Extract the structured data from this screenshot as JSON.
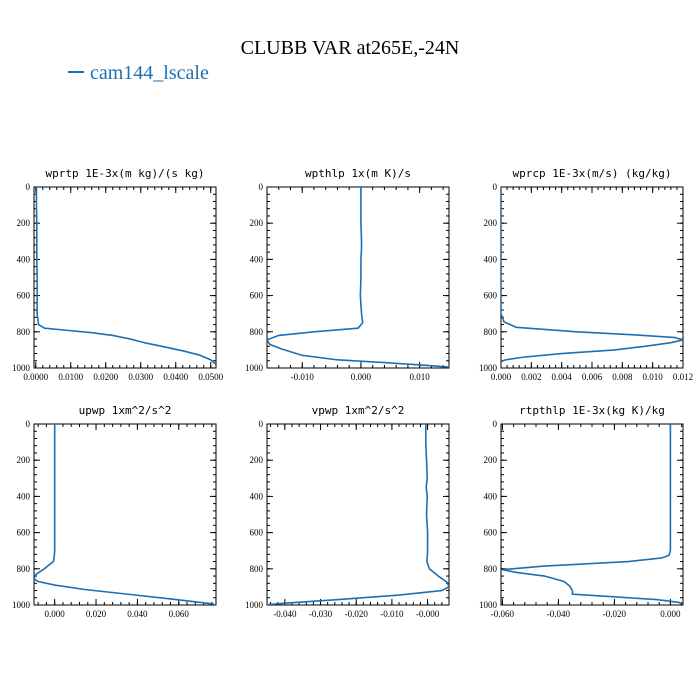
{
  "figure": {
    "title": "CLUBB VAR at265E,-24N",
    "legend_label": "cam144_lscale",
    "line_color": "#1f6fb0"
  },
  "chart_data": [
    {
      "type": "line",
      "title": "wprtp  1E-3x(m kg)/(s kg)",
      "xlim": [
        -0.0005,
        0.0515
      ],
      "ylim": [
        1000,
        0
      ],
      "xticks": [
        0.0,
        0.01,
        0.02,
        0.03,
        0.04,
        0.05
      ],
      "xtick_labels": [
        "0.0000",
        "0.0100",
        "0.0200",
        "0.0300",
        "0.0400",
        "0.0500"
      ],
      "yticks": [
        0,
        200,
        400,
        600,
        800,
        1000
      ],
      "ytick_labels": [
        "0",
        "200",
        "400",
        "600",
        "800",
        "1000"
      ],
      "series": [
        {
          "x": [
            0.0002,
            0.0002,
            0.0003,
            0.0003,
            0.0003,
            0.0004,
            0.0004,
            0.0004,
            0.0008,
            0.0025,
            0.008,
            0.016,
            0.022,
            0.027,
            0.031,
            0.036,
            0.042,
            0.047,
            0.05,
            0.0515
          ],
          "y": [
            0,
            100,
            200,
            300,
            400,
            500,
            600,
            700,
            760,
            780,
            790,
            805,
            820,
            840,
            860,
            880,
            905,
            930,
            955,
            980
          ]
        }
      ]
    },
    {
      "type": "line",
      "title": "wpthlp  1x(m K)/s",
      "xlim": [
        -0.016,
        0.015
      ],
      "ylim": [
        1000,
        0
      ],
      "xticks": [
        -0.01,
        0.0,
        0.01
      ],
      "xtick_labels": [
        "-0.010",
        "0.000",
        "0.010"
      ],
      "yticks": [
        0,
        200,
        400,
        600,
        800,
        1000
      ],
      "ytick_labels": [
        "0",
        "200",
        "400",
        "600",
        "800",
        "1000"
      ],
      "series": [
        {
          "x": [
            0.0,
            0.0,
            0.0,
            0.0001,
            0.0001,
            0.0,
            0.0,
            -0.0001,
            0.0001,
            0.0003,
            -0.0005,
            -0.008,
            -0.014,
            -0.016,
            -0.0155,
            -0.0135,
            -0.01,
            -0.004,
            0.004,
            0.011,
            0.015
          ],
          "y": [
            0,
            100,
            200,
            300,
            340,
            400,
            500,
            600,
            700,
            750,
            780,
            800,
            820,
            845,
            870,
            895,
            930,
            955,
            970,
            985,
            995
          ]
        }
      ]
    },
    {
      "type": "line",
      "title": "wprcp  1E-3x(m/s) (kg/kg)",
      "xlim": [
        0.0,
        0.012
      ],
      "ylim": [
        1000,
        0
      ],
      "xticks": [
        0.0,
        0.002,
        0.004,
        0.006,
        0.008,
        0.01,
        0.012
      ],
      "xtick_labels": [
        "0.000",
        "0.002",
        "0.004",
        "0.006",
        "0.008",
        "0.010",
        "0.012"
      ],
      "yticks": [
        0,
        200,
        400,
        600,
        800,
        1000
      ],
      "ytick_labels": [
        "0",
        "200",
        "400",
        "600",
        "800",
        "1000"
      ],
      "series": [
        {
          "x": [
            0.0,
            0.0,
            0.0,
            0.0,
            0.0,
            0.0002,
            0.001,
            0.005,
            0.009,
            0.0115,
            0.012,
            0.0112,
            0.0095,
            0.0075,
            0.004,
            0.0015,
            0.0003,
            0.0
          ],
          "y": [
            0,
            200,
            400,
            600,
            700,
            745,
            775,
            800,
            818,
            832,
            845,
            860,
            880,
            900,
            920,
            940,
            955,
            965
          ]
        }
      ]
    },
    {
      "type": "line",
      "title": "upwp  1xm^2/s^2",
      "xlim": [
        -0.01,
        0.078
      ],
      "ylim": [
        1000,
        0
      ],
      "xticks": [
        0.0,
        0.02,
        0.04,
        0.06
      ],
      "xtick_labels": [
        "0.000",
        "0.020",
        "0.040",
        "0.060"
      ],
      "yticks": [
        0,
        200,
        400,
        600,
        800,
        1000
      ],
      "ytick_labels": [
        "0",
        "200",
        "400",
        "600",
        "800",
        "1000"
      ],
      "series": [
        {
          "x": [
            0.0,
            0.0,
            0.0,
            0.0,
            0.0,
            -0.0002,
            -0.0006,
            -0.005,
            -0.009,
            -0.01,
            -0.008,
            0.0,
            0.015,
            0.035,
            0.055,
            0.07,
            0.077
          ],
          "y": [
            0,
            200,
            400,
            600,
            700,
            730,
            760,
            800,
            830,
            855,
            870,
            890,
            915,
            940,
            965,
            985,
            995
          ]
        }
      ]
    },
    {
      "type": "line",
      "title": "vpwp  1xm^2/s^2",
      "xlim": [
        -0.045,
        0.006
      ],
      "ylim": [
        1000,
        0
      ],
      "xticks": [
        -0.04,
        -0.03,
        -0.02,
        -0.01,
        0.0
      ],
      "xtick_labels": [
        "-0.040",
        "-0.030",
        "-0.020",
        "-0.010",
        "-0.000"
      ],
      "yticks": [
        0,
        200,
        400,
        600,
        800,
        1000
      ],
      "ytick_labels": [
        "0",
        "200",
        "400",
        "600",
        "800",
        "1000"
      ],
      "series": [
        {
          "x": [
            -0.0005,
            -0.0005,
            -0.0003,
            -0.0001,
            -0.0004,
            -0.0001,
            -0.0003,
            0.0,
            0.0,
            -0.0002,
            0.0005,
            0.003,
            0.0055,
            0.006,
            0.004,
            -0.008,
            -0.025,
            -0.04,
            -0.045
          ],
          "y": [
            0,
            100,
            200,
            300,
            350,
            400,
            500,
            600,
            700,
            760,
            800,
            840,
            875,
            900,
            920,
            945,
            970,
            990,
            998
          ]
        }
      ]
    },
    {
      "type": "line",
      "title": "rtpthlp  1E-3x(kg K)/kg",
      "xlim": [
        -0.0605,
        0.0045
      ],
      "ylim": [
        1000,
        0
      ],
      "xticks": [
        -0.06,
        -0.04,
        -0.02,
        0.0
      ],
      "xtick_labels": [
        "-0.060",
        "-0.040",
        "-0.020",
        "0.000"
      ],
      "yticks": [
        0,
        200,
        400,
        600,
        800,
        1000
      ],
      "ytick_labels": [
        "0",
        "200",
        "400",
        "600",
        "800",
        "1000"
      ],
      "series": [
        {
          "x": [
            0.0,
            0.0,
            0.0,
            0.0,
            0.0,
            -0.0005,
            -0.003,
            -0.015,
            -0.045,
            -0.06,
            -0.055,
            -0.045,
            -0.038,
            -0.036,
            -0.035,
            -0.035,
            -0.02,
            -0.005,
            0.003,
            0.004
          ],
          "y": [
            0,
            200,
            400,
            600,
            700,
            725,
            740,
            760,
            785,
            805,
            820,
            840,
            870,
            895,
            920,
            940,
            955,
            970,
            985,
            995
          ]
        }
      ]
    }
  ]
}
